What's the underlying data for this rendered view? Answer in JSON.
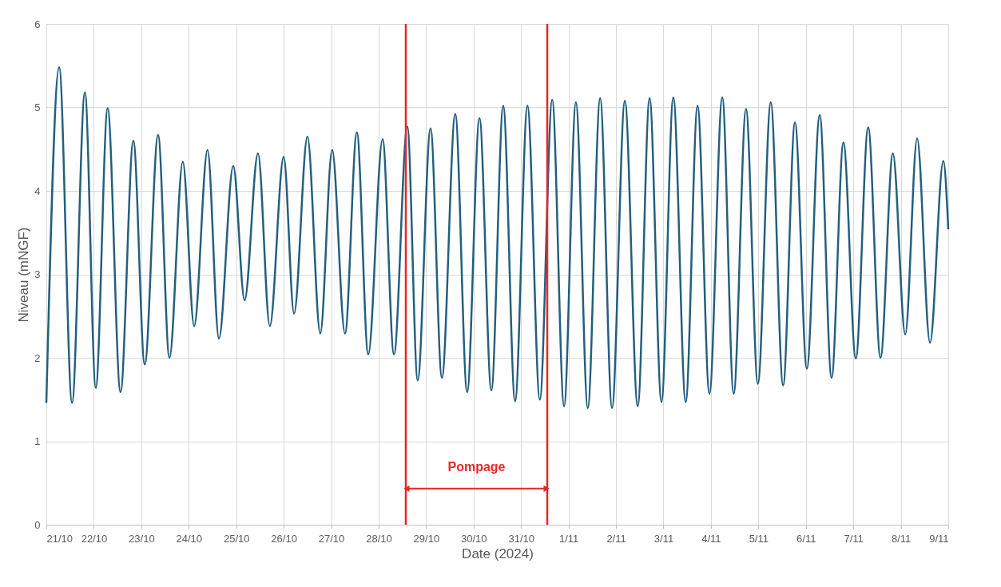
{
  "chart_data": {
    "type": "line",
    "xlabel": "Date (2024)",
    "ylabel": "Niveau (mNGF)",
    "x": [
      "2024-10-21T00:00",
      "2024-10-21T06:30",
      "2024-10-21T13:00",
      "2024-10-21T19:30",
      "2024-10-22T01:00",
      "2024-10-22T07:00",
      "2024-10-22T13:30",
      "2024-10-22T20:00",
      "2024-10-23T01:45",
      "2024-10-23T08:30",
      "2024-10-23T14:15",
      "2024-10-23T21:00",
      "2024-10-24T02:45",
      "2024-10-24T09:30",
      "2024-10-24T15:15",
      "2024-10-24T22:30",
      "2024-10-25T04:15",
      "2024-10-25T11:00",
      "2024-10-25T17:00",
      "2024-10-26T00:00",
      "2024-10-26T05:15",
      "2024-10-26T12:00",
      "2024-10-26T18:30",
      "2024-10-27T00:30",
      "2024-10-27T07:00",
      "2024-10-27T13:00",
      "2024-10-27T18:45",
      "2024-10-28T02:00",
      "2024-10-28T07:45",
      "2024-10-28T14:30",
      "2024-10-28T19:45",
      "2024-10-29T02:15",
      "2024-10-29T08:00",
      "2024-10-29T14:45",
      "2024-10-29T20:45",
      "2024-10-30T03:00",
      "2024-10-30T09:00",
      "2024-10-30T15:00",
      "2024-10-30T21:00",
      "2024-10-31T03:15",
      "2024-10-31T09:30",
      "2024-10-31T15:45",
      "2024-10-31T21:45",
      "2024-11-01T03:45",
      "2024-11-01T09:45",
      "2024-11-01T16:00",
      "2024-11-01T22:00",
      "2024-11-02T04:30",
      "2024-11-02T11:00",
      "2024-11-02T17:00",
      "2024-11-02T23:00",
      "2024-11-03T05:00",
      "2024-11-03T11:15",
      "2024-11-03T17:15",
      "2024-11-03T23:15",
      "2024-11-04T05:45",
      "2024-11-04T11:30",
      "2024-11-04T17:45",
      "2024-11-04T23:45",
      "2024-11-05T06:15",
      "2024-11-05T12:30",
      "2024-11-05T18:30",
      "2024-11-06T00:30",
      "2024-11-06T07:00",
      "2024-11-06T13:00",
      "2024-11-06T19:00",
      "2024-11-07T01:15",
      "2024-11-07T07:30",
      "2024-11-07T13:45",
      "2024-11-07T20:00",
      "2024-11-08T02:15",
      "2024-11-08T08:15",
      "2024-11-08T14:45",
      "2024-11-08T21:30",
      "2024-11-09T00:00"
    ],
    "series": [
      {
        "color": "#245f7e",
        "values": [
          1.46,
          5.48,
          1.46,
          5.18,
          1.64,
          4.99,
          1.59,
          4.6,
          1.92,
          4.67,
          2.0,
          4.35,
          2.38,
          4.49,
          2.23,
          4.3,
          2.69,
          4.45,
          2.38,
          4.41,
          2.53,
          4.65,
          2.29,
          4.49,
          2.29,
          4.7,
          2.04,
          4.62,
          2.04,
          4.77,
          1.73,
          4.75,
          1.76,
          4.92,
          1.59,
          4.87,
          1.61,
          5.02,
          1.48,
          5.02,
          1.5,
          5.09,
          1.42,
          5.06,
          1.4,
          5.11,
          1.4,
          5.08,
          1.42,
          5.11,
          1.47,
          5.12,
          1.47,
          5.02,
          1.57,
          5.12,
          1.57,
          4.98,
          1.69,
          5.06,
          1.67,
          4.82,
          1.87,
          4.91,
          1.76,
          4.58,
          1.99,
          4.76,
          2.0,
          4.45,
          2.28,
          4.63,
          2.18,
          4.36,
          3.54
        ]
      }
    ],
    "xlim": [
      "2024-10-21T00:00",
      "2024-11-09T00:00"
    ],
    "xticks": [
      {
        "value": "2024-10-21T00:00",
        "label": "21/10"
      },
      {
        "value": "2024-10-22T00:00",
        "label": "22/10"
      },
      {
        "value": "2024-10-23T00:00",
        "label": "23/10"
      },
      {
        "value": "2024-10-24T00:00",
        "label": "24/10"
      },
      {
        "value": "2024-10-25T00:00",
        "label": "25/10"
      },
      {
        "value": "2024-10-26T00:00",
        "label": "26/10"
      },
      {
        "value": "2024-10-27T00:00",
        "label": "27/10"
      },
      {
        "value": "2024-10-28T00:00",
        "label": "28/10"
      },
      {
        "value": "2024-10-29T00:00",
        "label": "29/10"
      },
      {
        "value": "2024-10-30T00:00",
        "label": "30/10"
      },
      {
        "value": "2024-10-31T00:00",
        "label": "31/10"
      },
      {
        "value": "2024-11-01T00:00",
        "label": "1/11"
      },
      {
        "value": "2024-11-02T00:00",
        "label": "2/11"
      },
      {
        "value": "2024-11-03T00:00",
        "label": "3/11"
      },
      {
        "value": "2024-11-04T00:00",
        "label": "4/11"
      },
      {
        "value": "2024-11-05T00:00",
        "label": "5/11"
      },
      {
        "value": "2024-11-06T00:00",
        "label": "6/11"
      },
      {
        "value": "2024-11-07T00:00",
        "label": "7/11"
      },
      {
        "value": "2024-11-08T00:00",
        "label": "8/11"
      },
      {
        "value": "2024-11-09T00:00",
        "label": "9/11"
      }
    ],
    "ylim": [
      0,
      6
    ],
    "yticks": [
      0,
      1,
      2,
      3,
      4,
      5,
      6
    ],
    "grid": true,
    "marker": "none",
    "line_style": "solid",
    "ref_lines": [
      {
        "axis": "x",
        "value": "2024-10-28T13:45",
        "color": "#e8262a"
      },
      {
        "axis": "x",
        "value": "2024-10-31T13:15",
        "color": "#e8262a"
      }
    ],
    "annotations": [
      "Pompage"
    ]
  }
}
